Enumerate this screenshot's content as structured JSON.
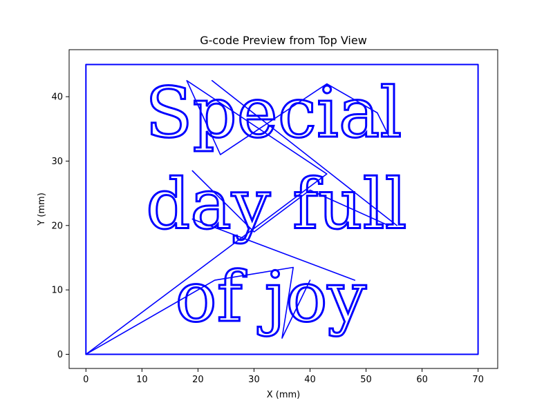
{
  "chart_data": {
    "type": "line",
    "title": "G-code Preview from Top View",
    "xlabel": "X (mm)",
    "ylabel": "Y (mm)",
    "xlim": [
      -3,
      73.5
    ],
    "ylim": [
      -2.2,
      47.3
    ],
    "xticks": [
      0,
      10,
      20,
      30,
      40,
      50,
      60,
      70
    ],
    "yticks": [
      0,
      10,
      20,
      30,
      40
    ],
    "grid": false,
    "line_color": "#0000ff",
    "text_lines": [
      {
        "text": "Special",
        "x": 33.5,
        "y": 33.8
      },
      {
        "text": "day full",
        "x": 34,
        "y": 19.6
      },
      {
        "text": "of joy",
        "x": 33,
        "y": 5.2
      }
    ],
    "series": [
      {
        "values": [
          [
            0,
            0
          ],
          [
            0,
            45
          ],
          [
            70,
            45
          ],
          [
            70,
            0
          ],
          [
            0,
            0
          ]
        ]
      },
      {
        "values": [
          [
            0,
            0
          ],
          [
            43,
            28
          ],
          [
            18,
            42.5
          ],
          [
            24,
            31
          ],
          [
            43,
            42
          ],
          [
            52,
            37.5
          ],
          [
            54,
            34
          ]
        ]
      },
      {
        "values": [
          [
            22.5,
            42.5
          ],
          [
            55.5,
            20
          ]
        ]
      },
      {
        "values": [
          [
            19,
            28.5
          ],
          [
            30,
            19
          ],
          [
            40,
            25.5
          ],
          [
            54,
            20
          ]
        ]
      },
      {
        "values": [
          [
            0,
            0
          ],
          [
            23,
            11.5
          ],
          [
            37,
            13.5
          ],
          [
            35,
            2.5
          ],
          [
            40,
            11.5
          ]
        ]
      },
      {
        "values": [
          [
            19,
            21
          ],
          [
            48,
            11.5
          ]
        ]
      }
    ]
  }
}
